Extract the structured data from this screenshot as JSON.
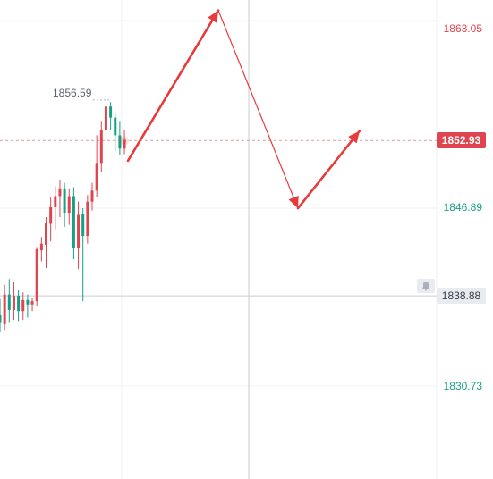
{
  "chart_data": {
    "type": "candlestick",
    "y_axis": {
      "ticks": [
        {
          "value": 1863.05,
          "label": "1863.05",
          "color": "#e0454f"
        },
        {
          "value": 1846.89,
          "label": "1846.89",
          "color": "#16a085"
        },
        {
          "value": 1830.73,
          "label": "1830.73",
          "color": "#16a085"
        }
      ]
    },
    "current_price": {
      "value": 1852.93,
      "label": "1852.93",
      "color": "#e0454f"
    },
    "crosshair_price": {
      "value": 1838.88,
      "label": "1838.88"
    },
    "peak_label": "1856.59",
    "up_color": "#e0454f",
    "down_color": "#16a085",
    "candles": [
      {
        "o": 1837.2,
        "h": 1838.6,
        "l": 1835.6,
        "c": 1836.5
      },
      {
        "o": 1836.4,
        "h": 1839.9,
        "l": 1835.8,
        "c": 1839.0
      },
      {
        "o": 1839.0,
        "h": 1840.4,
        "l": 1836.5,
        "c": 1837.6
      },
      {
        "o": 1837.6,
        "h": 1840.1,
        "l": 1836.7,
        "c": 1838.9
      },
      {
        "o": 1838.9,
        "h": 1839.4,
        "l": 1836.6,
        "c": 1837.5
      },
      {
        "o": 1837.5,
        "h": 1839.2,
        "l": 1836.7,
        "c": 1838.5
      },
      {
        "o": 1838.5,
        "h": 1839.0,
        "l": 1836.9,
        "c": 1838.1
      },
      {
        "o": 1838.1,
        "h": 1838.7,
        "l": 1837.5,
        "c": 1838.4
      },
      {
        "o": 1838.4,
        "h": 1843.3,
        "l": 1838.0,
        "c": 1843.1
      },
      {
        "o": 1843.0,
        "h": 1844.2,
        "l": 1842.0,
        "c": 1843.6
      },
      {
        "o": 1843.5,
        "h": 1846.0,
        "l": 1841.4,
        "c": 1845.5
      },
      {
        "o": 1845.4,
        "h": 1847.8,
        "l": 1843.8,
        "c": 1846.9
      },
      {
        "o": 1846.9,
        "h": 1848.8,
        "l": 1844.9,
        "c": 1847.9
      },
      {
        "o": 1847.9,
        "h": 1849.4,
        "l": 1846.0,
        "c": 1848.6
      },
      {
        "o": 1848.6,
        "h": 1849.1,
        "l": 1845.1,
        "c": 1846.4
      },
      {
        "o": 1846.4,
        "h": 1848.6,
        "l": 1845.3,
        "c": 1847.9
      },
      {
        "o": 1847.9,
        "h": 1848.7,
        "l": 1842.2,
        "c": 1843.2
      },
      {
        "o": 1843.2,
        "h": 1847.4,
        "l": 1841.3,
        "c": 1846.2
      },
      {
        "o": 1846.3,
        "h": 1846.8,
        "l": 1838.4,
        "c": 1844.3
      },
      {
        "o": 1844.3,
        "h": 1848.0,
        "l": 1843.6,
        "c": 1847.4
      },
      {
        "o": 1847.4,
        "h": 1849.1,
        "l": 1846.6,
        "c": 1848.4
      },
      {
        "o": 1848.4,
        "h": 1853.4,
        "l": 1847.8,
        "c": 1850.9
      },
      {
        "o": 1850.9,
        "h": 1854.7,
        "l": 1850.1,
        "c": 1853.9
      },
      {
        "o": 1853.9,
        "h": 1856.6,
        "l": 1852.9,
        "c": 1856.0
      },
      {
        "o": 1856.0,
        "h": 1856.4,
        "l": 1853.9,
        "c": 1855.0
      },
      {
        "o": 1855.0,
        "h": 1855.4,
        "l": 1852.0,
        "c": 1853.4
      },
      {
        "o": 1853.4,
        "h": 1854.7,
        "l": 1851.6,
        "c": 1852.2
      },
      {
        "o": 1852.2,
        "h": 1853.9,
        "l": 1851.7,
        "c": 1852.9
      }
    ],
    "projection_path": [
      1851.1,
      1864.7,
      1846.8,
      1853.8
    ],
    "arrow_color": "#e83a3a",
    "grid": true
  }
}
